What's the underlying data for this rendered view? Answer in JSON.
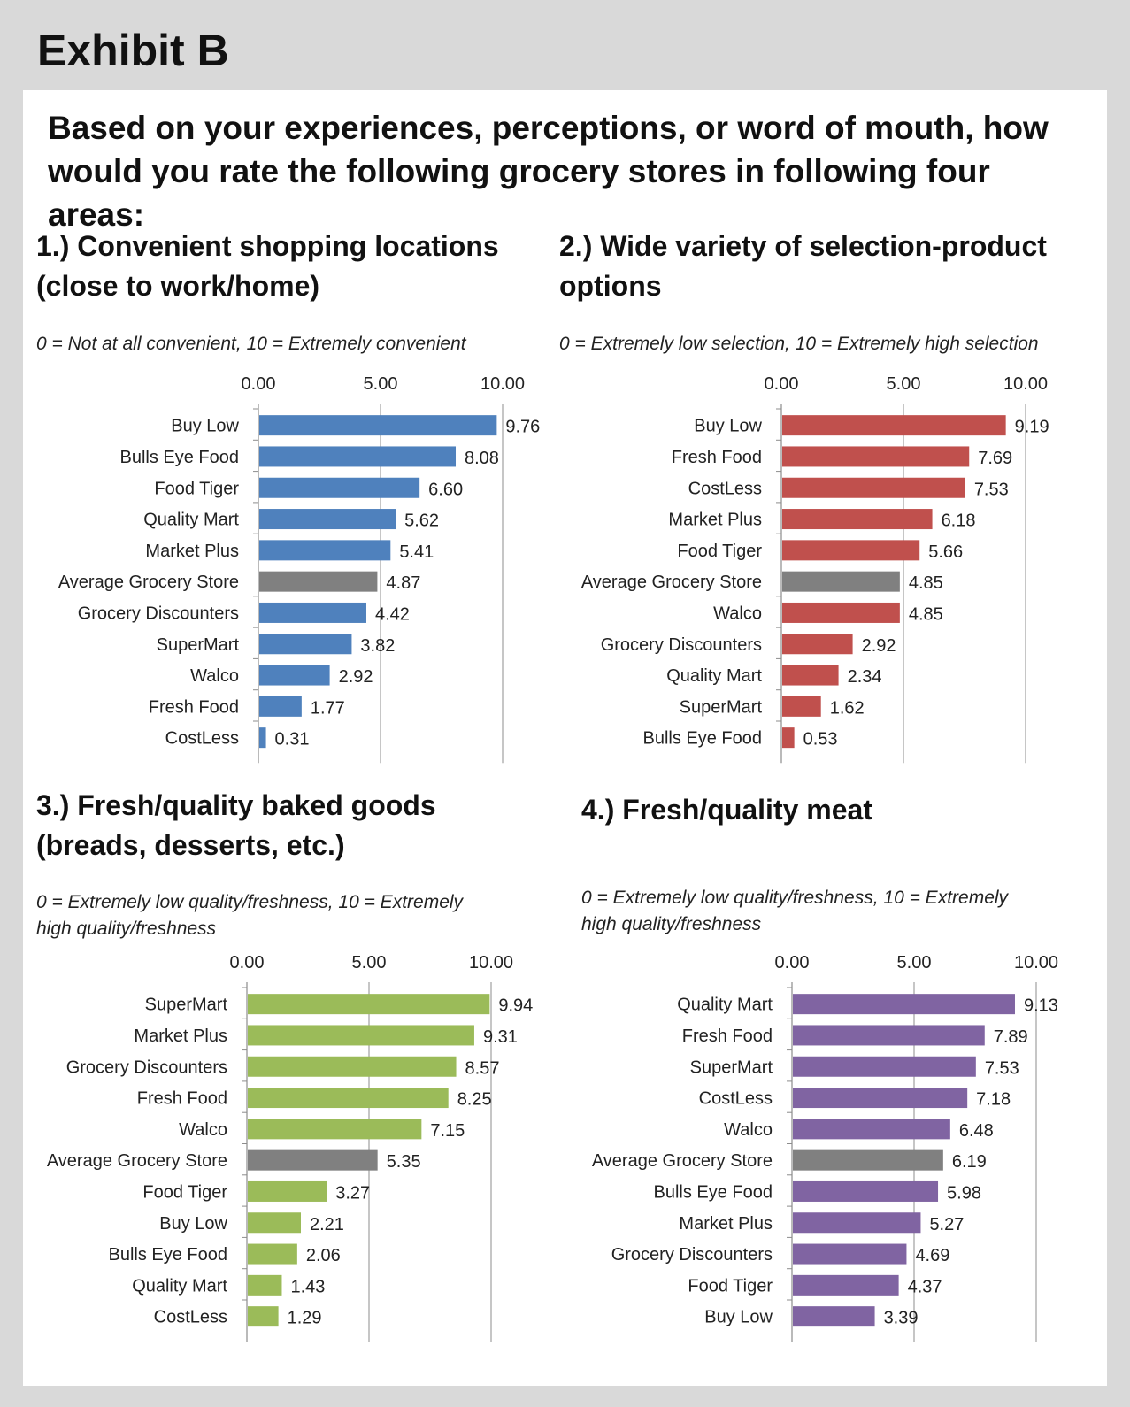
{
  "exhibit_title": "Exhibit B",
  "question": "Based on your experiences, perceptions, or word of mouth, how would you rate the following grocery stores in following four areas:",
  "chart_data": [
    {
      "type": "bar",
      "orientation": "horizontal",
      "title_line1": "1.) Convenient shopping locations",
      "title_line2": "(close to work/home)",
      "scale_line1": "0 = Not at all convenient, 10 = Extremely convenient",
      "scale_line2": "",
      "color": "#4f81bd",
      "highlight_color": "#808080",
      "highlight_category": "Average Grocery Store",
      "xlim": [
        0,
        10
      ],
      "ticks": [
        "0.00",
        "5.00",
        "10.00"
      ],
      "categories": [
        "Buy Low",
        "Bulls Eye Food",
        "Food Tiger",
        "Quality Mart",
        "Market Plus",
        "Average Grocery Store",
        "Grocery Discounters",
        "SuperMart",
        "Walco",
        "Fresh Food",
        "CostLess"
      ],
      "values": [
        9.76,
        8.08,
        6.6,
        5.62,
        5.41,
        4.87,
        4.42,
        3.82,
        2.92,
        1.77,
        0.31
      ],
      "labels": [
        "9.76",
        "8.08",
        "6.60",
        "5.62",
        "5.41",
        "4.87",
        "4.42",
        "3.82",
        "2.92",
        "1.77",
        "0.31"
      ]
    },
    {
      "type": "bar",
      "orientation": "horizontal",
      "title_line1": "2.) Wide variety of selection-product",
      "title_line2": "options",
      "scale_line1": "0 = Extremely low selection, 10 = Extremely high selection",
      "scale_line2": "",
      "color": "#c0504d",
      "highlight_color": "#808080",
      "highlight_category": "Average Grocery Store",
      "xlim": [
        0,
        10
      ],
      "ticks": [
        "0.00",
        "5.00",
        "10.00"
      ],
      "categories": [
        "Buy Low",
        "Fresh Food",
        "CostLess",
        "Market Plus",
        "Food Tiger",
        "Average Grocery Store",
        "Walco",
        "Grocery Discounters",
        "Quality Mart",
        "SuperMart",
        "Bulls Eye Food"
      ],
      "values": [
        9.19,
        7.69,
        7.53,
        6.18,
        5.66,
        4.85,
        4.85,
        2.92,
        2.34,
        1.62,
        0.53
      ],
      "labels": [
        "9.19",
        "7.69",
        "7.53",
        "6.18",
        "5.66",
        "4.85",
        "4.85",
        "2.92",
        "2.34",
        "1.62",
        "0.53"
      ]
    },
    {
      "type": "bar",
      "orientation": "horizontal",
      "title_line1": "3.) Fresh/quality baked goods",
      "title_line2": "(breads, desserts, etc.)",
      "scale_line1": "0 = Extremely low quality/freshness, 10 = Extremely",
      "scale_line2": "high quality/freshness",
      "color": "#9bbb59",
      "highlight_color": "#808080",
      "highlight_category": "Average Grocery Store",
      "xlim": [
        0,
        10
      ],
      "ticks": [
        "0.00",
        "5.00",
        "10.00"
      ],
      "categories": [
        "SuperMart",
        "Market Plus",
        "Grocery Discounters",
        "Fresh Food",
        "Walco",
        "Average Grocery Store",
        "Food Tiger",
        "Buy Low",
        "Bulls Eye Food",
        "Quality Mart",
        "CostLess"
      ],
      "values": [
        9.94,
        9.31,
        8.57,
        8.25,
        7.15,
        5.35,
        3.27,
        2.21,
        2.06,
        1.43,
        1.29
      ],
      "labels": [
        "9.94",
        "9.31",
        "8.57",
        "8.25",
        "7.15",
        "5.35",
        "3.27",
        "2.21",
        "2.06",
        "1.43",
        "1.29"
      ]
    },
    {
      "type": "bar",
      "orientation": "horizontal",
      "title_line1": "4.) Fresh/quality meat",
      "title_line2": "",
      "scale_line1": "0 = Extremely low quality/freshness, 10 = Extremely",
      "scale_line2": "high quality/freshness",
      "color": "#8064a2",
      "highlight_color": "#808080",
      "highlight_category": "Average Grocery Store",
      "xlim": [
        0,
        10
      ],
      "ticks": [
        "0.00",
        "5.00",
        "10.00"
      ],
      "categories": [
        "Quality Mart",
        "Fresh Food",
        "SuperMart",
        "CostLess",
        "Walco",
        "Average Grocery Store",
        "Bulls Eye Food",
        "Market Plus",
        "Grocery Discounters",
        "Food Tiger",
        "Buy Low"
      ],
      "values": [
        9.13,
        7.89,
        7.53,
        7.18,
        6.48,
        6.19,
        5.98,
        5.27,
        4.69,
        4.37,
        3.39
      ],
      "labels": [
        "9.13",
        "7.89",
        "7.53",
        "7.18",
        "6.48",
        "6.19",
        "5.98",
        "5.27",
        "4.69",
        "4.37",
        "3.39"
      ]
    }
  ]
}
